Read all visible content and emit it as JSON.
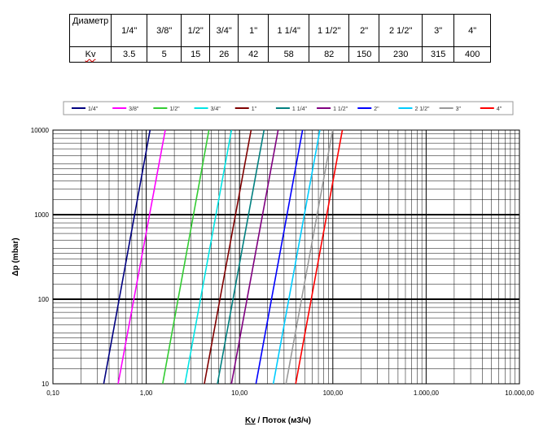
{
  "table": {
    "header_label": "Диаметр",
    "row_label": "Kv",
    "columns": [
      {
        "size": "1/4\"",
        "kv": "3.5"
      },
      {
        "size": "3/8\"",
        "kv": "5"
      },
      {
        "size": "1/2\"",
        "kv": "15"
      },
      {
        "size": "3/4\"",
        "kv": "26"
      },
      {
        "size": "1\"",
        "kv": "42"
      },
      {
        "size": "1 1/4\"",
        "kv": "58"
      },
      {
        "size": "1 1/2\"",
        "kv": "82"
      },
      {
        "size": "2\"",
        "kv": "150"
      },
      {
        "size": "2 1/2\"",
        "kv": "230"
      },
      {
        "size": "3\"",
        "kv": "315"
      },
      {
        "size": "4\"",
        "kv": "400"
      }
    ]
  },
  "chart_data": {
    "type": "line",
    "xscale": "log",
    "yscale": "log",
    "xlim": [
      0.1,
      10000
    ],
    "ylim": [
      10,
      10000
    ],
    "x_ticks": [
      "0,10",
      "1,00",
      "10,00",
      "100,00",
      "1.000,00",
      "10.000,00"
    ],
    "y_ticks": [
      "10",
      "100",
      "1000",
      "10000"
    ],
    "xlabel_kv": "Kv",
    "xlabel_rest": " / Поток (м3/ч)",
    "ylabel": "Δp (mbar)",
    "grid": true,
    "legend_position": "top",
    "series": [
      {
        "name": "1/4\"",
        "color": "#000080",
        "x": [
          0.35,
          1.1
        ],
        "y": [
          10,
          10000
        ]
      },
      {
        "name": "3/8\"",
        "color": "#ff00ff",
        "x": [
          0.5,
          1.6
        ],
        "y": [
          10,
          10000
        ]
      },
      {
        "name": "1/2\"",
        "color": "#33cc33",
        "x": [
          1.5,
          4.7
        ],
        "y": [
          10,
          10000
        ]
      },
      {
        "name": "3/4\"",
        "color": "#00e5e5",
        "x": [
          2.6,
          8.2
        ],
        "y": [
          10,
          10000
        ]
      },
      {
        "name": "1\"",
        "color": "#800000",
        "x": [
          4.2,
          13.3
        ],
        "y": [
          10,
          10000
        ]
      },
      {
        "name": "1 1/4\"",
        "color": "#008080",
        "x": [
          5.8,
          18.3
        ],
        "y": [
          10,
          10000
        ]
      },
      {
        "name": "1 1/2\"",
        "color": "#800080",
        "x": [
          8.2,
          25.9
        ],
        "y": [
          10,
          10000
        ]
      },
      {
        "name": "2\"",
        "color": "#0000ff",
        "x": [
          15,
          47.4
        ],
        "y": [
          10,
          10000
        ]
      },
      {
        "name": "2 1/2\"",
        "color": "#00ccff",
        "x": [
          23,
          72.7
        ],
        "y": [
          10,
          10000
        ]
      },
      {
        "name": "3\"",
        "color": "#999999",
        "x": [
          31.5,
          99.6
        ],
        "y": [
          10,
          10000
        ]
      },
      {
        "name": "4\"",
        "color": "#ff0000",
        "x": [
          40,
          126.5
        ],
        "y": [
          10,
          10000
        ]
      }
    ]
  }
}
